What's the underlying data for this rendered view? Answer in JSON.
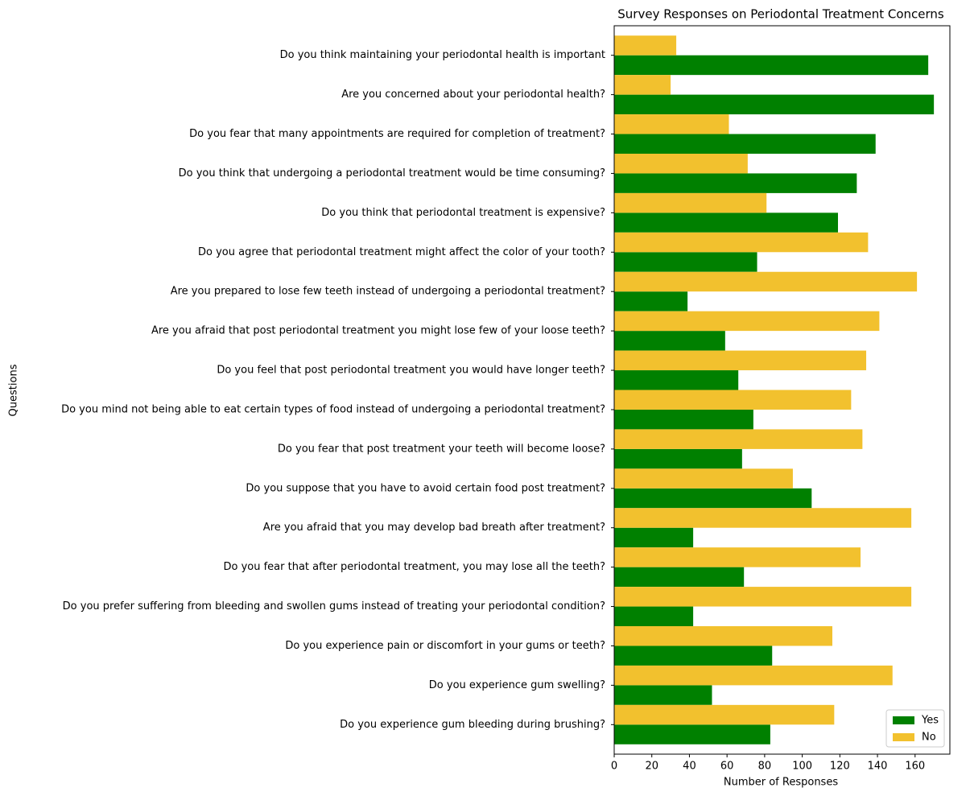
{
  "chart_data": {
    "type": "hbar",
    "title": "Survey Responses on Periodontal Treatment Concerns",
    "x_label": "Number of Responses",
    "y_label": "Questions",
    "categories": [
      "Do you think maintaining your periodontal health is important",
      "Are you concerned about your periodontal health?",
      "Do you fear that many appointments are required for completion of treatment?",
      "Do you think that undergoing a periodontal treatment would be time consuming?",
      "Do you think that periodontal treatment is expensive?",
      "Do you agree that periodontal treatment might affect the color of your tooth?",
      "Are you prepared to lose few teeth instead of undergoing a periodontal treatment?",
      "Are you afraid that post periodontal treatment you might lose few of your loose teeth?",
      "Do you feel that post periodontal treatment you would have longer teeth?",
      "Do you mind not being able to eat certain types of food instead of undergoing a periodontal treatment?",
      "Do you fear that post treatment your teeth will become loose?",
      "Do you suppose that you have to avoid certain food post treatment?",
      "Are you afraid that you may develop bad breath after treatment?",
      "Do you fear that after periodontal treatment, you may lose all the teeth?",
      "Do you prefer suffering from bleeding and swollen gums instead of treating your periodontal condition?",
      "Do you experience pain or discomfort in your gums or teeth?",
      "Do you experience gum swelling?",
      "Do you experience gum bleeding during brushing?"
    ],
    "series": [
      {
        "name": "Yes",
        "color": "#008000",
        "values": [
          167,
          170,
          139,
          129,
          119,
          76,
          39,
          59,
          66,
          74,
          68,
          105,
          42,
          69,
          42,
          84,
          52,
          83
        ]
      },
      {
        "name": "No",
        "color": "#f2c12e",
        "values": [
          33,
          30,
          61,
          71,
          81,
          135,
          161,
          141,
          134,
          126,
          132,
          95,
          158,
          131,
          158,
          116,
          148,
          117
        ]
      }
    ],
    "xlim": [
      0,
      178.5
    ],
    "xticks": [
      0,
      20,
      40,
      60,
      80,
      100,
      120,
      140,
      160
    ],
    "legend": "lower right"
  }
}
